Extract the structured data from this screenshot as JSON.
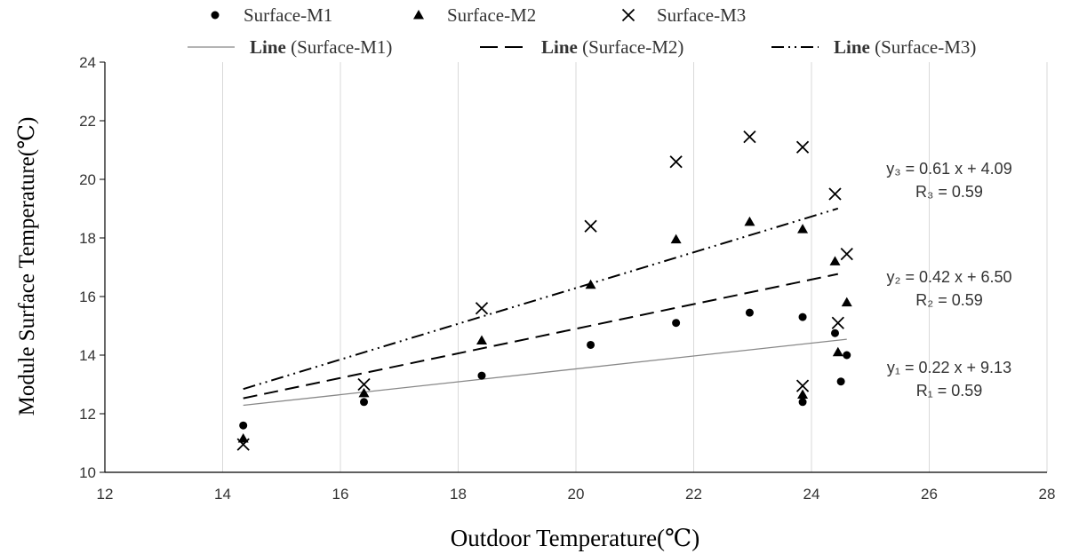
{
  "chart_data": {
    "type": "scatter",
    "title": "",
    "xlabel": "Outdoor Temperature(℃)",
    "ylabel": "Module Surface Temperature(℃)",
    "xlim": [
      12,
      28
    ],
    "ylim": [
      10,
      24
    ],
    "x_ticks": [
      "12",
      "14",
      "16",
      "18",
      "20",
      "22",
      "24",
      "26",
      "28"
    ],
    "y_ticks": [
      "10",
      "12",
      "14",
      "16",
      "18",
      "20",
      "22",
      "24"
    ],
    "grid": "vertical",
    "legend_position": "top",
    "series": [
      {
        "name": "Surface-M1",
        "marker": "circle",
        "color": "#000000",
        "points": [
          [
            14.35,
            11.6
          ],
          [
            16.4,
            12.4
          ],
          [
            18.4,
            13.3
          ],
          [
            20.25,
            14.35
          ],
          [
            21.7,
            15.1
          ],
          [
            22.95,
            15.45
          ],
          [
            23.85,
            15.3
          ],
          [
            24.4,
            14.75
          ],
          [
            24.5,
            13.1
          ],
          [
            24.6,
            14.0
          ],
          [
            23.85,
            12.4
          ]
        ]
      },
      {
        "name": "Surface-M2",
        "marker": "triangle",
        "color": "#000000",
        "points": [
          [
            14.35,
            11.15
          ],
          [
            16.4,
            12.7
          ],
          [
            18.4,
            14.5
          ],
          [
            20.25,
            16.4
          ],
          [
            21.7,
            17.95
          ],
          [
            22.95,
            18.55
          ],
          [
            23.85,
            18.3
          ],
          [
            24.4,
            17.2
          ],
          [
            24.45,
            14.1
          ],
          [
            24.6,
            15.8
          ],
          [
            23.85,
            12.65
          ]
        ]
      },
      {
        "name": "Surface-M3",
        "marker": "x",
        "color": "#000000",
        "points": [
          [
            14.35,
            10.95
          ],
          [
            16.4,
            13.0
          ],
          [
            18.4,
            15.6
          ],
          [
            20.25,
            18.4
          ],
          [
            21.7,
            20.6
          ],
          [
            22.95,
            21.45
          ],
          [
            23.85,
            21.1
          ],
          [
            24.4,
            19.5
          ],
          [
            24.45,
            15.1
          ],
          [
            24.6,
            17.45
          ],
          [
            23.85,
            12.95
          ]
        ]
      }
    ],
    "trendlines": [
      {
        "name": "Line (Surface-M1)",
        "name_bold": "Line",
        "name_rest": " (Surface-M1)",
        "style": "solid",
        "color": "#888888",
        "slope": 0.22,
        "intercept": 9.13,
        "x_range": [
          14.35,
          24.6
        ],
        "equation": "y₁ = 0.22 x + 9.13",
        "r_label": "R₁ = 0.59"
      },
      {
        "name": "Line (Surface-M2)",
        "name_bold": "Line",
        "name_rest": "  (Surface-M2)",
        "style": "dashed",
        "color": "#000000",
        "slope": 0.42,
        "intercept": 6.5,
        "x_range": [
          14.35,
          24.45
        ],
        "equation": "y₂ = 0.42 x + 6.50",
        "r_label": "R₂ = 0.59"
      },
      {
        "name": "Line (Surface-M3)",
        "name_bold": "Line",
        "name_rest": " (Surface-M3)",
        "style": "dash-dot-dot",
        "color": "#000000",
        "slope": 0.61,
        "intercept": 4.09,
        "x_range": [
          14.35,
          24.45
        ],
        "equation": "y₃ = 0.61 x + 4.09",
        "r_label": "R₃ = 0.59"
      }
    ]
  }
}
